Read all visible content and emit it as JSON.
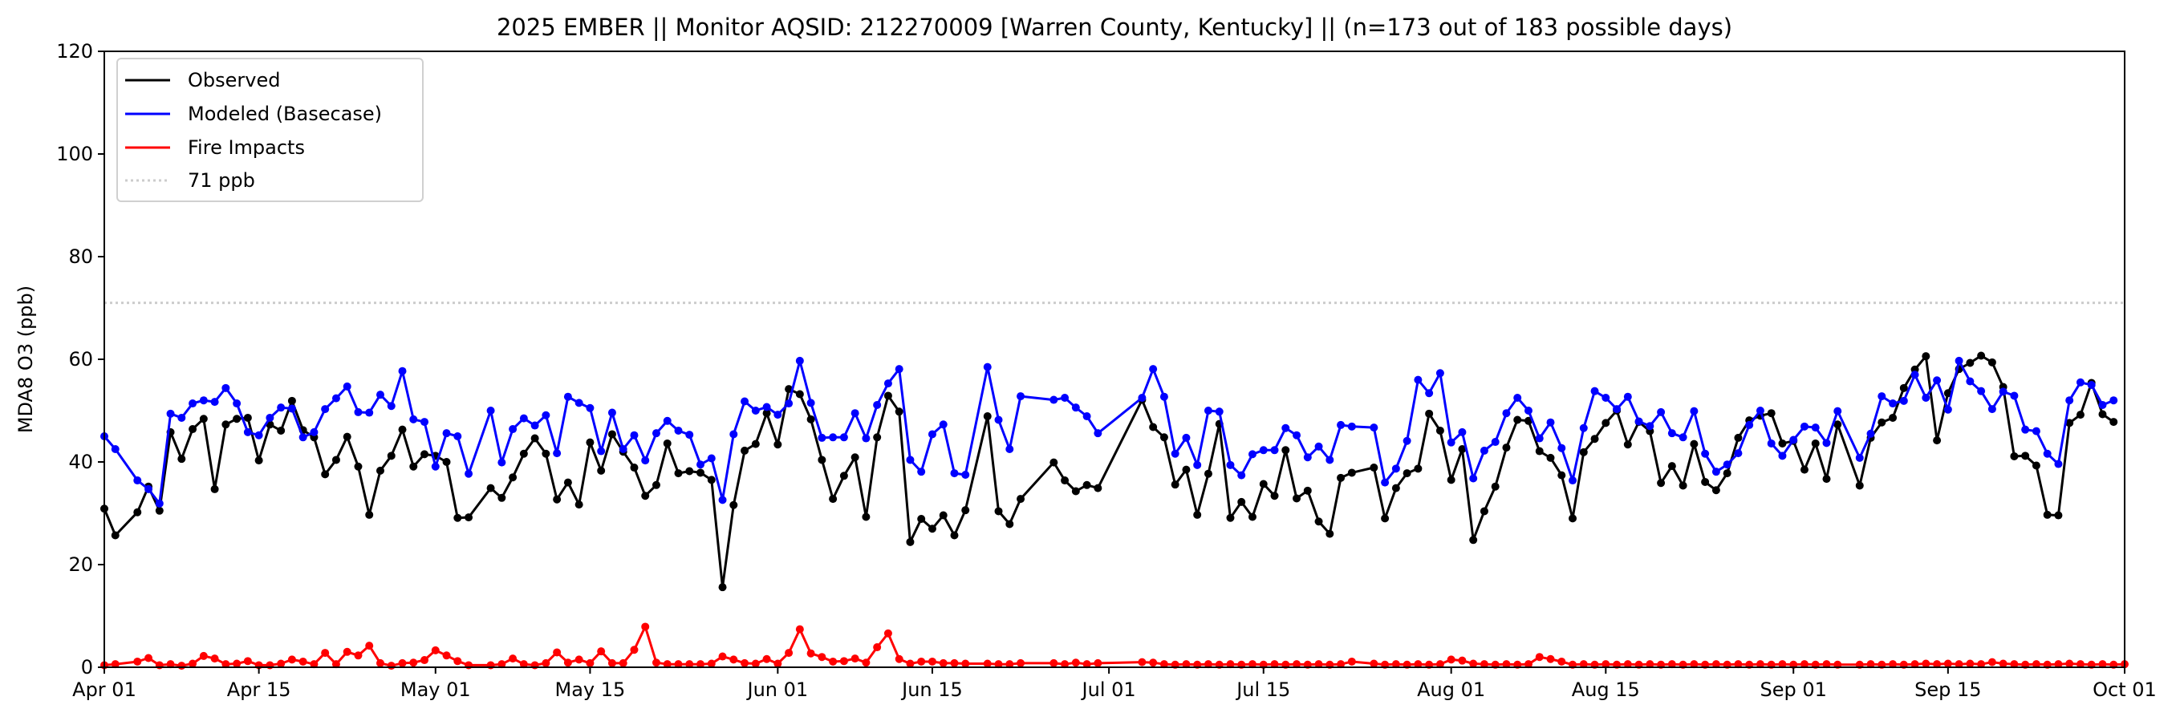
{
  "chart_data": {
    "type": "line",
    "title": "2025 EMBER || Monitor AQSID: 212270009 [Warren County, Kentucky] || (n=173 out of 183 possible days)",
    "xlabel": "",
    "ylabel": "MDA8 O3 (ppb)",
    "ylim": [
      0,
      120
    ],
    "xlim_days": [
      0,
      183
    ],
    "yticks": [
      0,
      20,
      40,
      60,
      80,
      100,
      120
    ],
    "xticks": [
      {
        "day": 0,
        "label": "Apr 01"
      },
      {
        "day": 14,
        "label": "Apr 15"
      },
      {
        "day": 30,
        "label": "May 01"
      },
      {
        "day": 44,
        "label": "May 15"
      },
      {
        "day": 61,
        "label": "Jun 01"
      },
      {
        "day": 75,
        "label": "Jun 15"
      },
      {
        "day": 91,
        "label": "Jul 01"
      },
      {
        "day": 105,
        "label": "Jul 15"
      },
      {
        "day": 122,
        "label": "Aug 01"
      },
      {
        "day": 136,
        "label": "Aug 15"
      },
      {
        "day": 153,
        "label": "Sep 01"
      },
      {
        "day": 167,
        "label": "Sep 15"
      },
      {
        "day": 183,
        "label": "Oct 01"
      }
    ],
    "grid": false,
    "legend_placement": "top-left",
    "reference_line": {
      "value": 71,
      "label": "71 ppb",
      "color": "#cccccc"
    },
    "series": [
      {
        "name": "Observed",
        "color": "#000000",
        "values": [
          30.9,
          25.7,
          null,
          30.2,
          35.2,
          30.5,
          45.8,
          40.6,
          46.4,
          48.4,
          34.7,
          47.3,
          48.4,
          48.6,
          40.3,
          47.3,
          46.1,
          51.9,
          46.2,
          44.8,
          37.6,
          40.4,
          44.9,
          39.1,
          29.7,
          38.3,
          41.2,
          46.3,
          39.1,
          41.5,
          41.2,
          40.0,
          29.1,
          29.2,
          null,
          34.9,
          33.0,
          37.0,
          41.6,
          44.6,
          41.6,
          32.7,
          36.0,
          31.7,
          43.8,
          38.3,
          45.4,
          42.0,
          38.9,
          33.4,
          35.5,
          43.6,
          37.8,
          38.2,
          37.9,
          36.5,
          15.6,
          31.6,
          42.2,
          43.5,
          49.5,
          43.4,
          54.2,
          53.2,
          48.3,
          40.4,
          32.8,
          37.3,
          40.9,
          29.3,
          44.8,
          52.9,
          49.8,
          24.4,
          28.9,
          27.0,
          29.6,
          25.7,
          30.6,
          null,
          48.9,
          30.4,
          27.9,
          32.8,
          null,
          null,
          39.9,
          36.4,
          34.3,
          35.5,
          34.9,
          null,
          null,
          null,
          52.1,
          46.8,
          44.8,
          35.6,
          38.5,
          29.7,
          37.7,
          47.4,
          29.1,
          32.2,
          29.3,
          35.7,
          33.4,
          42.3,
          32.9,
          34.4,
          28.4,
          26.0,
          36.9,
          37.9,
          null,
          38.9,
          29.0,
          34.9,
          37.8,
          38.7,
          49.4,
          46.1,
          36.5,
          42.5,
          24.8,
          30.4,
          35.2,
          42.8,
          48.2,
          48.0,
          42.1,
          40.8,
          37.4,
          29.0,
          41.9,
          44.5,
          47.6,
          50.0,
          43.4,
          47.8,
          46.0,
          35.9,
          39.2,
          35.4,
          43.5,
          36.1,
          34.5,
          37.8,
          44.7,
          48.1,
          49.0,
          49.5,
          43.6,
          44.1,
          38.5,
          43.6,
          36.7,
          47.3,
          null,
          35.4,
          44.7,
          47.7,
          48.6,
          54.4,
          58.0,
          60.6,
          44.2,
          53.4,
          58.1,
          59.3,
          60.7,
          59.4,
          54.6,
          41.1,
          41.2,
          39.3,
          29.7,
          29.6,
          47.6,
          49.2,
          55.4,
          49.3,
          47.8
        ]
      },
      {
        "name": "Modeled (Basecase)",
        "color": "#0000ff",
        "values": [
          45.0,
          42.5,
          null,
          36.4,
          34.7,
          31.9,
          49.4,
          48.6,
          51.4,
          52.0,
          51.7,
          54.4,
          51.4,
          45.8,
          45.2,
          48.6,
          50.6,
          50.4,
          44.8,
          45.8,
          50.3,
          52.4,
          54.7,
          49.7,
          49.6,
          53.1,
          50.9,
          57.7,
          48.3,
          47.8,
          39.1,
          45.6,
          45.0,
          37.7,
          null,
          50.0,
          39.9,
          46.4,
          48.5,
          47.1,
          49.1,
          41.7,
          52.7,
          51.5,
          50.5,
          42.1,
          49.6,
          42.5,
          45.2,
          40.3,
          45.6,
          48.0,
          46.1,
          45.3,
          39.5,
          40.7,
          32.6,
          45.4,
          51.8,
          50.0,
          50.7,
          49.2,
          51.4,
          59.7,
          51.5,
          44.7,
          44.8,
          44.8,
          49.5,
          44.6,
          51.1,
          55.3,
          58.1,
          40.4,
          38.1,
          45.4,
          47.3,
          37.8,
          37.5,
          null,
          58.5,
          48.2,
          42.5,
          52.8,
          null,
          null,
          52.1,
          52.5,
          50.6,
          48.9,
          45.6,
          null,
          null,
          null,
          52.5,
          58.1,
          52.7,
          41.6,
          44.7,
          39.4,
          50.0,
          49.8,
          39.4,
          37.4,
          41.5,
          42.3,
          42.3,
          46.6,
          45.2,
          40.9,
          43.0,
          40.4,
          47.2,
          46.9,
          null,
          46.7,
          36.0,
          38.7,
          44.1,
          56.0,
          53.4,
          57.3,
          43.8,
          45.8,
          36.8,
          42.2,
          43.9,
          49.5,
          52.5,
          50.0,
          44.6,
          47.7,
          42.7,
          36.4,
          46.6,
          53.8,
          52.5,
          50.3,
          52.7,
          47.9,
          47.0,
          49.7,
          45.6,
          44.8,
          49.9,
          41.6,
          38.1,
          39.5,
          41.7,
          47.2,
          50.0,
          43.6,
          41.2,
          44.3,
          46.9,
          46.7,
          43.7,
          49.9,
          null,
          40.8,
          45.5,
          52.8,
          51.4,
          51.9,
          57.0,
          52.5,
          55.9,
          50.2,
          59.7,
          55.7,
          53.8,
          50.3,
          53.7,
          52.9,
          46.3,
          46.0,
          41.6,
          39.6,
          52.0,
          55.5,
          55.0,
          51.1,
          52.0
        ]
      },
      {
        "name": "Fire Impacts",
        "color": "#ff0000",
        "values": [
          0.4,
          0.6,
          null,
          1.1,
          1.8,
          0.4,
          0.6,
          0.3,
          0.7,
          2.2,
          1.7,
          0.6,
          0.7,
          1.2,
          0.4,
          0.4,
          0.7,
          1.5,
          1.1,
          0.6,
          2.8,
          0.6,
          3.0,
          2.3,
          4.2,
          0.8,
          0.3,
          0.8,
          0.9,
          1.4,
          3.3,
          2.3,
          1.2,
          0.4,
          null,
          0.4,
          0.6,
          1.7,
          0.6,
          0.4,
          0.8,
          2.9,
          0.9,
          1.5,
          0.8,
          3.1,
          0.8,
          0.8,
          3.4,
          7.9,
          0.9,
          0.6,
          0.6,
          0.6,
          0.6,
          0.7,
          2.1,
          1.5,
          0.8,
          0.7,
          1.6,
          0.7,
          2.8,
          7.4,
          2.7,
          2.0,
          1.1,
          1.2,
          1.7,
          0.9,
          3.9,
          6.6,
          1.6,
          0.7,
          1.1,
          1.1,
          0.8,
          0.8,
          0.7,
          null,
          0.7,
          0.6,
          0.6,
          0.8,
          null,
          null,
          0.8,
          0.6,
          0.9,
          0.6,
          0.8,
          null,
          null,
          null,
          1.0,
          0.9,
          0.6,
          0.5,
          0.6,
          0.5,
          0.6,
          0.5,
          0.6,
          0.5,
          0.6,
          0.5,
          0.6,
          0.5,
          0.6,
          0.5,
          0.6,
          0.5,
          0.6,
          1.1,
          null,
          0.7,
          0.5,
          0.6,
          0.5,
          0.6,
          0.5,
          0.6,
          1.5,
          1.3,
          0.7,
          0.6,
          0.5,
          0.6,
          0.5,
          0.6,
          2.0,
          1.6,
          1.1,
          0.5,
          0.6,
          0.5,
          0.6,
          0.5,
          0.6,
          0.5,
          0.6,
          0.5,
          0.6,
          0.5,
          0.6,
          0.5,
          0.6,
          0.5,
          0.6,
          0.5,
          0.6,
          0.5,
          0.6,
          0.5,
          0.6,
          0.5,
          0.6,
          0.5,
          null,
          0.5,
          0.6,
          0.5,
          0.6,
          0.5,
          0.6,
          0.7,
          0.6,
          0.7,
          0.6,
          0.7,
          0.6,
          1.0,
          0.7,
          0.6,
          0.5,
          0.6,
          0.5,
          0.6,
          0.7,
          0.6,
          0.5,
          0.6,
          0.5,
          0.6
        ]
      }
    ]
  }
}
